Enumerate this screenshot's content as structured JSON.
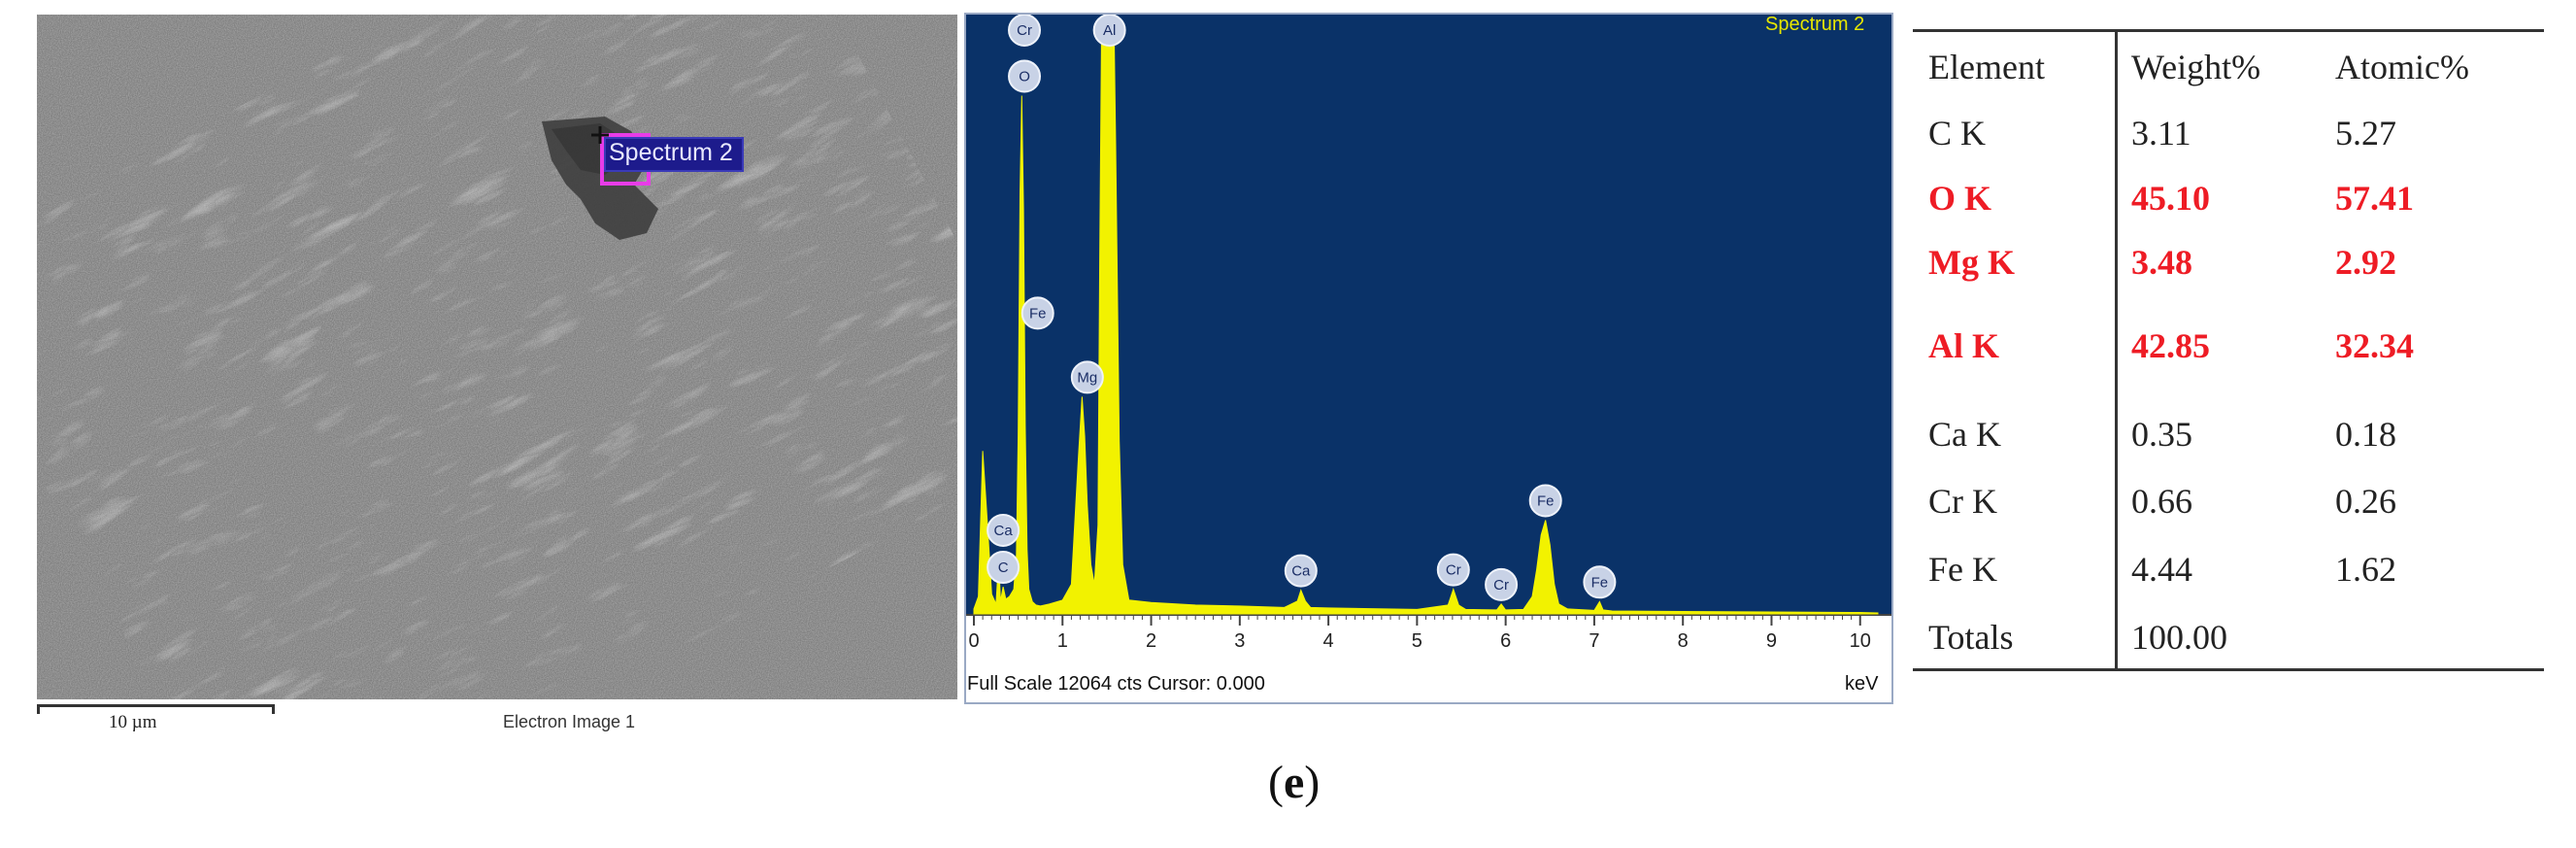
{
  "sem_image": {
    "spectrum_label": "Spectrum 2",
    "scale_bar_label": "10 µm",
    "caption": "Electron Image 1"
  },
  "eds_spectrum": {
    "title": "Spectrum 2",
    "footer": "Full Scale 12064 cts Cursor: 0.000",
    "x_unit": "keV",
    "plot_background": "#0a3268",
    "spectrum_color": "#f2f200"
  },
  "chart_data": {
    "type": "area",
    "title": "Spectrum 2",
    "xlabel": "keV",
    "ylabel": "",
    "xlim": [
      0,
      10.2
    ],
    "ylim": [
      0,
      12064
    ],
    "x_ticks": [
      "0",
      "1",
      "2",
      "3",
      "4",
      "5",
      "6",
      "7",
      "8",
      "9",
      "10"
    ],
    "series": [
      {
        "x": [
          0.0,
          0.05,
          0.1,
          0.15,
          0.2,
          0.25,
          0.28,
          0.3,
          0.33,
          0.36,
          0.4,
          0.45,
          0.48,
          0.5,
          0.52,
          0.54,
          0.56,
          0.58,
          0.6,
          0.62,
          0.66,
          0.7,
          0.75,
          0.85,
          1.0,
          1.1,
          1.18,
          1.22,
          1.25,
          1.28,
          1.32,
          1.36,
          1.4,
          1.42,
          1.44,
          1.46,
          1.48,
          1.5,
          1.52,
          1.54,
          1.56,
          1.58,
          1.6,
          1.64,
          1.68,
          1.75,
          2.0,
          2.5,
          3.0,
          3.5,
          3.65,
          3.69,
          3.74,
          3.8,
          4.0,
          5.0,
          5.35,
          5.41,
          5.47,
          5.55,
          5.9,
          5.95,
          6.0,
          6.2,
          6.3,
          6.35,
          6.4,
          6.45,
          6.5,
          6.55,
          6.6,
          6.7,
          7.0,
          7.06,
          7.1,
          7.2,
          8.0,
          9.0,
          10.0,
          10.2
        ],
        "y": [
          100,
          350,
          3300,
          1900,
          400,
          200,
          1100,
          250,
          550,
          300,
          350,
          500,
          1200,
          3600,
          8500,
          10500,
          8200,
          3800,
          1300,
          500,
          250,
          180,
          160,
          200,
          280,
          600,
          3200,
          4400,
          3600,
          2200,
          1000,
          600,
          1800,
          7200,
          11600,
          12064,
          12064,
          12064,
          12064,
          12064,
          12064,
          12064,
          9500,
          3500,
          1000,
          280,
          230,
          180,
          160,
          130,
          260,
          480,
          260,
          130,
          120,
          90,
          180,
          500,
          180,
          90,
          80,
          200,
          80,
          90,
          350,
          900,
          1600,
          1900,
          1400,
          600,
          200,
          100,
          70,
          250,
          80,
          60,
          50,
          40,
          30,
          20
        ]
      }
    ],
    "peaks": [
      {
        "label": "Cr",
        "x": 0.57,
        "y": 12064
      },
      {
        "label": "O",
        "x": 0.57,
        "y": 10500
      },
      {
        "label": "Al",
        "x": 1.53,
        "y": 12064
      },
      {
        "label": "Fe",
        "x": 0.72,
        "y": 5700
      },
      {
        "label": "Mg",
        "x": 1.28,
        "y": 4400
      },
      {
        "label": "Ca",
        "x": 0.33,
        "y": 1300
      },
      {
        "label": "C",
        "x": 0.33,
        "y": 550
      },
      {
        "label": "Ca",
        "x": 3.69,
        "y": 480
      },
      {
        "label": "Cr",
        "x": 5.41,
        "y": 500
      },
      {
        "label": "Cr",
        "x": 5.95,
        "y": 200
      },
      {
        "label": "Fe",
        "x": 6.45,
        "y": 1900
      },
      {
        "label": "Fe",
        "x": 7.06,
        "y": 250
      }
    ]
  },
  "composition_table": {
    "headers": [
      "Element",
      "Weight%",
      "Atomic%"
    ],
    "rows": [
      {
        "element": "C K",
        "weight": "3.11",
        "atomic": "5.27",
        "highlight": false
      },
      {
        "element": "O K",
        "weight": "45.10",
        "atomic": "57.41",
        "highlight": true
      },
      {
        "element": "Mg K",
        "weight": "3.48",
        "atomic": "2.92",
        "highlight": true
      },
      {
        "element": "Al K",
        "weight": "42.85",
        "atomic": "32.34",
        "highlight": true
      },
      {
        "element": "Ca K",
        "weight": "0.35",
        "atomic": "0.18",
        "highlight": false
      },
      {
        "element": "Cr K",
        "weight": "0.66",
        "atomic": "0.26",
        "highlight": false
      },
      {
        "element": "Fe K",
        "weight": "4.44",
        "atomic": "1.62",
        "highlight": false
      }
    ],
    "totals": {
      "label": "Totals",
      "weight": "100.00"
    },
    "highlight_color": "#ee1c25"
  },
  "figure_label": "(e)",
  "figure_label_parts": {
    "open": "(",
    "letter": "e",
    "close": ")"
  }
}
